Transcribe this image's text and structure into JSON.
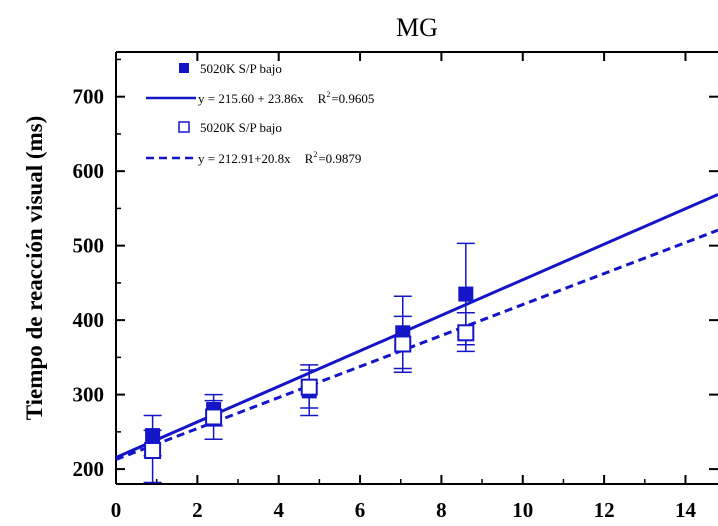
{
  "chart_data": {
    "type": "scatter",
    "title": "MG",
    "xlabel": "",
    "ylabel": "Tiempo de reacción visual (ms)",
    "xlim": [
      0,
      14.8
    ],
    "ylim": [
      180,
      760
    ],
    "xticks": [
      0,
      2,
      4,
      6,
      8,
      10,
      12,
      14
    ],
    "yticks": [
      200,
      300,
      400,
      500,
      600,
      700
    ],
    "grid": false,
    "legend_position": "top-left",
    "series": [
      {
        "name": "5020K S/P bajo",
        "marker": "filled-square",
        "color": "#1515c8",
        "x": [
          0.9,
          2.4,
          4.75,
          7.05,
          8.6
        ],
        "y": [
          245,
          280,
          305,
          383,
          435
        ],
        "err_high": [
          272,
          300,
          340,
          432,
          503
        ],
        "err_low": [
          218,
          258,
          272,
          335,
          367
        ],
        "fit": {
          "label": "y = 215.60 + 23.86x",
          "r2_label": "=0.9605",
          "intercept": 215.6,
          "slope": 23.86,
          "style": "solid"
        }
      },
      {
        "name": "5020K S/P bajo",
        "marker": "open-square",
        "color": "#1515c8",
        "x": [
          0.9,
          2.4,
          4.75,
          7.05,
          8.6
        ],
        "y": [
          225,
          270,
          310,
          368,
          383
        ],
        "err_high": [
          252,
          292,
          333,
          405,
          410
        ],
        "err_low": [
          182,
          240,
          282,
          330,
          358
        ],
        "fit": {
          "label": "y = 212.91+20.8x",
          "r2_label": "=0.9879",
          "intercept": 212.91,
          "slope": 20.8,
          "style": "dashed"
        }
      }
    ]
  }
}
